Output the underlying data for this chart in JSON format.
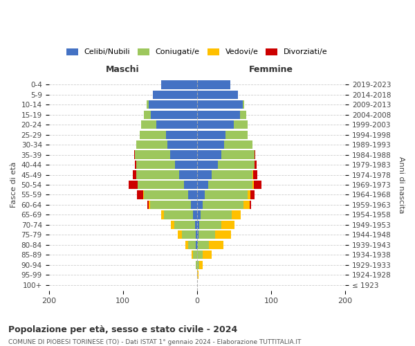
{
  "age_groups": [
    "100+",
    "95-99",
    "90-94",
    "85-89",
    "80-84",
    "75-79",
    "70-74",
    "65-69",
    "60-64",
    "55-59",
    "50-54",
    "45-49",
    "40-44",
    "35-39",
    "30-34",
    "25-29",
    "20-24",
    "15-19",
    "10-14",
    "5-9",
    "0-4"
  ],
  "birth_years": [
    "≤ 1923",
    "1924-1928",
    "1929-1933",
    "1934-1938",
    "1939-1943",
    "1944-1948",
    "1949-1953",
    "1954-1958",
    "1959-1963",
    "1964-1968",
    "1969-1973",
    "1974-1978",
    "1979-1983",
    "1984-1988",
    "1989-1993",
    "1994-1998",
    "1999-2003",
    "2004-2008",
    "2009-2013",
    "2014-2018",
    "2019-2023"
  ],
  "males": {
    "celibi": [
      0,
      0,
      0,
      0,
      2,
      2,
      3,
      5,
      8,
      12,
      18,
      24,
      30,
      36,
      40,
      42,
      55,
      62,
      65,
      60,
      48
    ],
    "coniugati": [
      0,
      0,
      2,
      5,
      10,
      18,
      28,
      40,
      55,
      60,
      62,
      58,
      52,
      48,
      42,
      35,
      20,
      10,
      3,
      0,
      0
    ],
    "vedovi": [
      0,
      0,
      0,
      2,
      4,
      6,
      4,
      3,
      2,
      1,
      0,
      0,
      0,
      0,
      0,
      0,
      0,
      0,
      0,
      0,
      0
    ],
    "divorziati": [
      0,
      0,
      0,
      0,
      0,
      0,
      0,
      0,
      2,
      8,
      12,
      5,
      2,
      1,
      0,
      0,
      0,
      0,
      0,
      0,
      0
    ]
  },
  "females": {
    "nubili": [
      0,
      0,
      0,
      0,
      1,
      2,
      3,
      5,
      8,
      10,
      15,
      20,
      28,
      33,
      37,
      38,
      50,
      58,
      62,
      55,
      45
    ],
    "coniugate": [
      0,
      0,
      3,
      8,
      15,
      22,
      30,
      42,
      55,
      58,
      60,
      55,
      50,
      45,
      38,
      30,
      18,
      8,
      2,
      0,
      0
    ],
    "vedove": [
      0,
      2,
      5,
      12,
      20,
      22,
      18,
      12,
      8,
      4,
      2,
      1,
      0,
      0,
      0,
      0,
      0,
      0,
      0,
      0,
      0
    ],
    "divorziate": [
      0,
      0,
      0,
      0,
      0,
      0,
      0,
      0,
      2,
      6,
      10,
      5,
      2,
      1,
      0,
      0,
      0,
      0,
      0,
      0,
      0
    ]
  },
  "colors": {
    "celibi": "#4472c4",
    "coniugati": "#9dc75d",
    "vedovi": "#ffc000",
    "divorziati": "#cc0000"
  },
  "title": "Popolazione per età, sesso e stato civile - 2024",
  "subtitle": "COMUNE DI PIOBESI TORINESE (TO) - Dati ISTAT 1° gennaio 2024 - Elaborazione TUTTITALIA.IT",
  "xlabel_left": "Maschi",
  "xlabel_right": "Femmine",
  "ylabel": "Fasce di età",
  "ylabel_right": "Anni di nascita",
  "xlim": 200,
  "background_color": "#ffffff",
  "grid_color": "#cccccc"
}
